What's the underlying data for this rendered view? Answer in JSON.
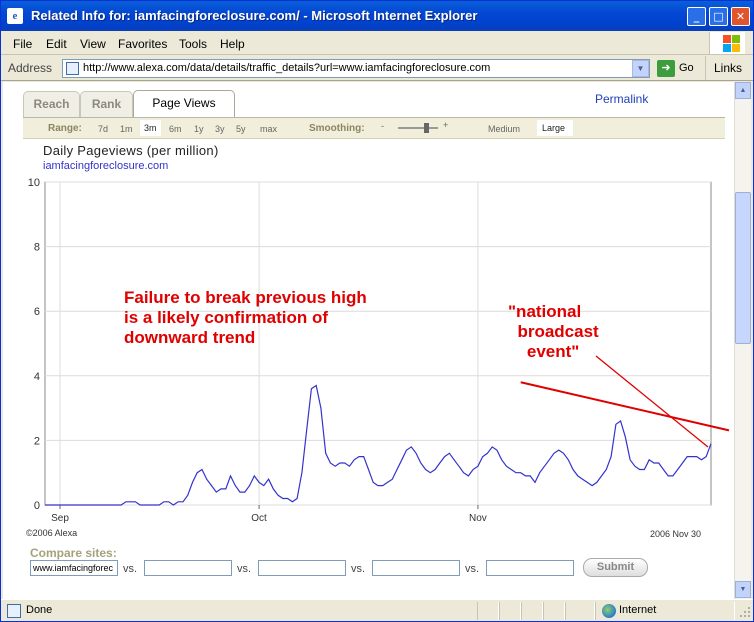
{
  "window": {
    "title": "Related Info for: iamfacingforeclosure.com/ - Microsoft Internet Explorer"
  },
  "menu": [
    "File",
    "Edit",
    "View",
    "Favorites",
    "Tools",
    "Help"
  ],
  "address": {
    "label": "Address",
    "url": "http://www.alexa.com/data/details/traffic_details?url=www.iamfacingforeclosure.com",
    "go_label": "Go",
    "links_label": "Links"
  },
  "tabs": [
    {
      "label": "Reach",
      "active": false
    },
    {
      "label": "Rank",
      "active": false
    },
    {
      "label": "Page Views",
      "active": true
    }
  ],
  "permalink": "Permalink",
  "range": {
    "label": "Range:",
    "options": [
      "7d",
      "1m",
      "3m",
      "6m",
      "1y",
      "3y",
      "5y",
      "max"
    ],
    "selected": "3m"
  },
  "smoothing": {
    "label": "Smoothing:",
    "minus": "-",
    "plus": "+",
    "options": [
      "Medium",
      "Large"
    ],
    "selected": "Large"
  },
  "chart_data": {
    "type": "line",
    "title": "Daily Pageviews (per million)",
    "series": [
      {
        "name": "iamfacingforeclosure.com",
        "color": "#3333cc",
        "values": [
          0,
          0,
          0,
          0,
          0,
          0,
          0,
          0,
          0,
          0,
          0,
          0,
          0,
          0,
          0,
          0,
          0,
          0.1,
          0.1,
          0.1,
          0,
          0,
          0,
          0,
          0,
          0.1,
          0.1,
          0,
          0.1,
          0.1,
          0.3,
          0.7,
          1.0,
          1.1,
          0.8,
          0.6,
          0.4,
          0.5,
          0.5,
          0.9,
          0.6,
          0.4,
          0.4,
          0.6,
          0.9,
          0.7,
          0.6,
          0.8,
          0.5,
          0.3,
          0.2,
          0.2,
          0.1,
          0.2,
          1.0,
          2.3,
          3.6,
          3.7,
          3.0,
          1.6,
          1.3,
          1.2,
          1.3,
          1.3,
          1.2,
          1.4,
          1.5,
          1.5,
          1.1,
          0.7,
          0.6,
          0.6,
          0.7,
          0.8,
          1.1,
          1.4,
          1.7,
          1.8,
          1.6,
          1.3,
          1.1,
          1.0,
          1.1,
          1.3,
          1.5,
          1.6,
          1.4,
          1.2,
          1.0,
          0.9,
          1.1,
          1.2,
          1.5,
          1.6,
          1.8,
          1.7,
          1.4,
          1.2,
          1.1,
          1.0,
          1.0,
          0.9,
          0.9,
          0.7,
          1.0,
          1.2,
          1.4,
          1.6,
          1.7,
          1.6,
          1.4,
          1.1,
          0.9,
          0.8,
          0.7,
          0.6,
          0.7,
          0.9,
          1.1,
          1.5,
          2.5,
          2.6,
          2.1,
          1.4,
          1.2,
          1.1,
          1.1,
          1.4,
          1.3,
          1.3,
          1.1,
          0.9,
          0.9,
          1.1,
          1.3,
          1.5,
          1.5,
          1.5,
          1.4,
          1.5,
          1.9
        ]
      }
    ],
    "x_ticks": [
      "Sep",
      "Oct",
      "Nov"
    ],
    "y_ticks": [
      "0",
      "2",
      "4",
      "6",
      "8",
      "10"
    ],
    "ylim": [
      0,
      10
    ],
    "grid": true,
    "trend_line": {
      "from": [
        100,
        3.8
      ],
      "to": [
        150,
        2.1
      ],
      "color": "#e00000"
    },
    "copyright": "©2006 Alexa",
    "end_date": "2006 Nov 30"
  },
  "annotations": {
    "failure": "Failure to break previous high\nis a likely confirmation of\ndownward trend",
    "broadcast": "\"national\n  broadcast\n    event\""
  },
  "compare": {
    "label": "Compare sites:",
    "first_value": "www.iamfacingforec",
    "vs_label": "vs.",
    "submit_label": "Submit"
  },
  "status": {
    "text": "Done",
    "zone": "Internet"
  }
}
